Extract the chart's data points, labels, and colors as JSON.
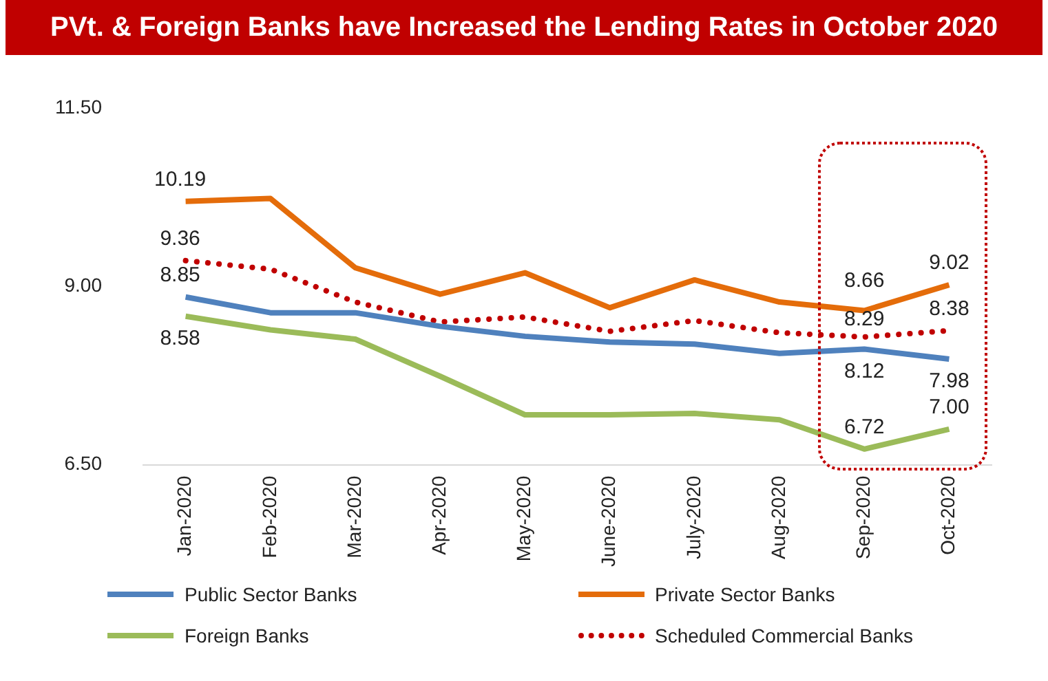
{
  "chart_data": {
    "type": "line",
    "title": "PVt. & Foreign Banks have Increased the Lending Rates in October 2020",
    "categories": [
      "Jan-2020",
      "Feb-2020",
      "Mar-2020",
      "Apr-2020",
      "May-2020",
      "June-2020",
      "July-2020",
      "Aug-2020",
      "Sep-2020",
      "Oct-2020"
    ],
    "series": [
      {
        "name": "Public Sector Banks",
        "color": "#4f81bd",
        "values": [
          8.85,
          8.63,
          8.63,
          8.44,
          8.3,
          8.22,
          8.19,
          8.06,
          8.12,
          7.98
        ],
        "value_labels": [
          "8.85",
          null,
          null,
          null,
          null,
          null,
          null,
          null,
          "8.12",
          "7.98"
        ]
      },
      {
        "name": "Private Sector Banks",
        "color": "#e46c0a",
        "values": [
          10.19,
          10.23,
          9.26,
          8.89,
          9.19,
          8.7,
          9.09,
          8.78,
          8.66,
          9.02
        ],
        "value_labels": [
          "10.19",
          null,
          null,
          null,
          null,
          null,
          null,
          null,
          "8.66",
          "9.02"
        ]
      },
      {
        "name": "Foreign Banks",
        "color": "#9bbb59",
        "values": [
          8.58,
          8.39,
          8.26,
          7.74,
          7.2,
          7.2,
          7.22,
          7.13,
          6.72,
          7.0
        ],
        "value_labels": [
          "8.58",
          null,
          null,
          null,
          null,
          null,
          null,
          null,
          "6.72",
          "7.00"
        ]
      },
      {
        "name": "Scheduled Commercial Banks",
        "color": "#c00000",
        "line_style": "dotted",
        "values": [
          9.36,
          9.24,
          8.78,
          8.5,
          8.57,
          8.37,
          8.52,
          8.35,
          8.29,
          8.38
        ],
        "value_labels": [
          "9.36",
          null,
          null,
          null,
          null,
          null,
          null,
          null,
          "8.29",
          "8.38"
        ]
      }
    ],
    "ylim": [
      6.5,
      11.5
    ],
    "yticks": [
      {
        "value": 6.5,
        "label": "6.50"
      },
      {
        "value": 9,
        "label": "9.00"
      },
      {
        "value": 11.5,
        "label": "11.50"
      }
    ],
    "grid": false,
    "legend": "bottom",
    "line_style": "solid",
    "marker": "none"
  }
}
